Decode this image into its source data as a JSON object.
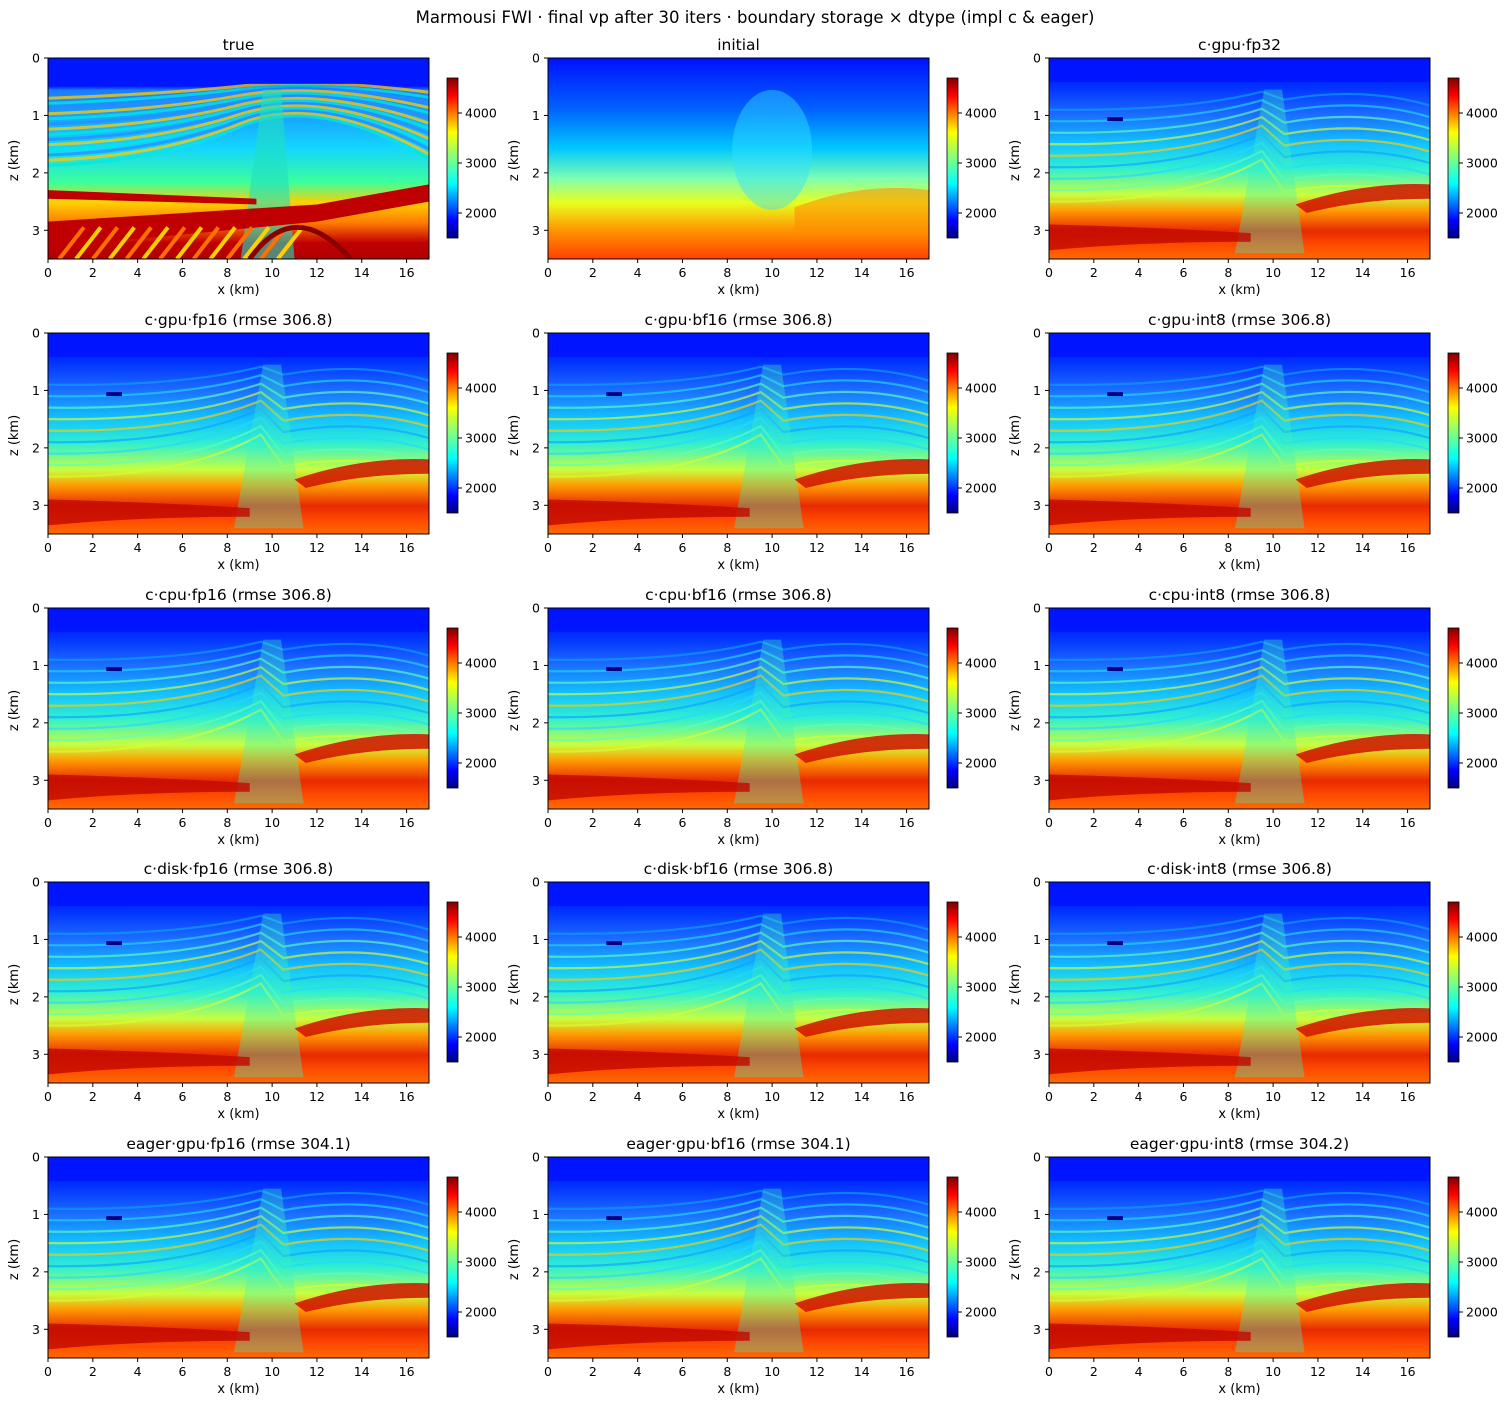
{
  "figure": {
    "suptitle": "Marmousi FWI · final vp after 30 iters · boundary storage × dtype (impl c & eager)"
  },
  "chart_data": {
    "type": "heatmap",
    "colormap": "jet",
    "grid": false,
    "xlabel": "x (km)",
    "ylabel": "z (km)",
    "xlim": [
      0,
      17
    ],
    "ylim": [
      3.5,
      0
    ],
    "x_ticks": [
      "0",
      "2",
      "4",
      "6",
      "8",
      "10",
      "12",
      "14",
      "16"
    ],
    "y_ticks": [
      "0",
      "1",
      "2",
      "3"
    ],
    "colorbar": {
      "range": [
        1500,
        4700
      ],
      "ticks": [
        "2000",
        "3000",
        "4000"
      ]
    },
    "panels": [
      {
        "title": "true",
        "model": "true"
      },
      {
        "title": "initial",
        "model": "initial"
      },
      {
        "title": "c·gpu·fp32",
        "model": "inverted"
      },
      {
        "title": "c·gpu·fp16  (rmse 306.8)",
        "model": "inverted",
        "rmse": 306.8
      },
      {
        "title": "c·gpu·bf16  (rmse 306.8)",
        "model": "inverted",
        "rmse": 306.8
      },
      {
        "title": "c·gpu·int8  (rmse 306.8)",
        "model": "inverted",
        "rmse": 306.8
      },
      {
        "title": "c·cpu·fp16  (rmse 306.8)",
        "model": "inverted",
        "rmse": 306.8
      },
      {
        "title": "c·cpu·bf16  (rmse 306.8)",
        "model": "inverted",
        "rmse": 306.8
      },
      {
        "title": "c·cpu·int8  (rmse 306.8)",
        "model": "inverted",
        "rmse": 306.8
      },
      {
        "title": "c·disk·fp16  (rmse 306.8)",
        "model": "inverted",
        "rmse": 306.8
      },
      {
        "title": "c·disk·bf16  (rmse 306.8)",
        "model": "inverted",
        "rmse": 306.8
      },
      {
        "title": "c·disk·int8  (rmse 306.8)",
        "model": "inverted",
        "rmse": 306.8
      },
      {
        "title": "eager·gpu·fp16  (rmse 304.1)",
        "model": "inverted",
        "rmse": 304.1
      },
      {
        "title": "eager·gpu·bf16  (rmse 304.1)",
        "model": "inverted",
        "rmse": 304.1
      },
      {
        "title": "eager·gpu·int8  (rmse 304.2)",
        "model": "inverted",
        "rmse": 304.2
      }
    ]
  }
}
